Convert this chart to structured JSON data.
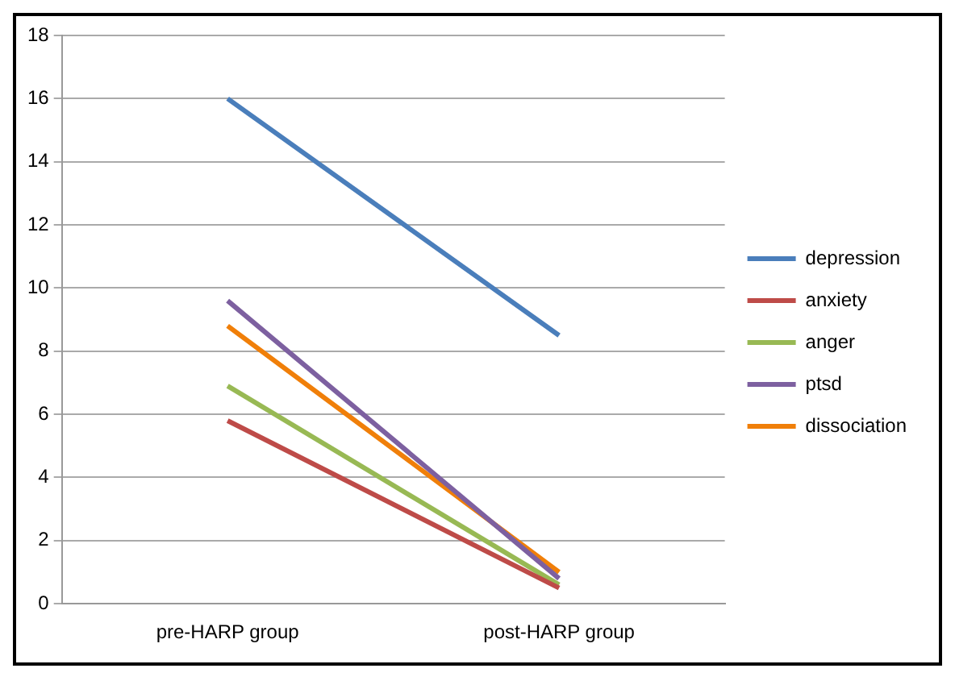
{
  "chart_data": {
    "type": "line",
    "categories": [
      "pre-HARP group",
      "post-HARP group"
    ],
    "series": [
      {
        "name": "depression",
        "color": "#4a7ebb",
        "values": [
          16.0,
          8.5
        ]
      },
      {
        "name": "anxiety",
        "color": "#be4b48",
        "values": [
          5.8,
          0.5
        ]
      },
      {
        "name": "anger",
        "color": "#98b954",
        "values": [
          6.9,
          0.6
        ]
      },
      {
        "name": "ptsd",
        "color": "#7d60a0",
        "values": [
          9.6,
          0.8
        ]
      },
      {
        "name": "dissociation",
        "color": "#f07f09",
        "values": [
          8.8,
          1.0
        ]
      }
    ],
    "ylim": [
      0,
      18
    ],
    "yticks": [
      0,
      2,
      4,
      6,
      8,
      10,
      12,
      14,
      16,
      18
    ],
    "grid": "y",
    "legend": "right",
    "marker": "none",
    "line_style": "solid"
  }
}
